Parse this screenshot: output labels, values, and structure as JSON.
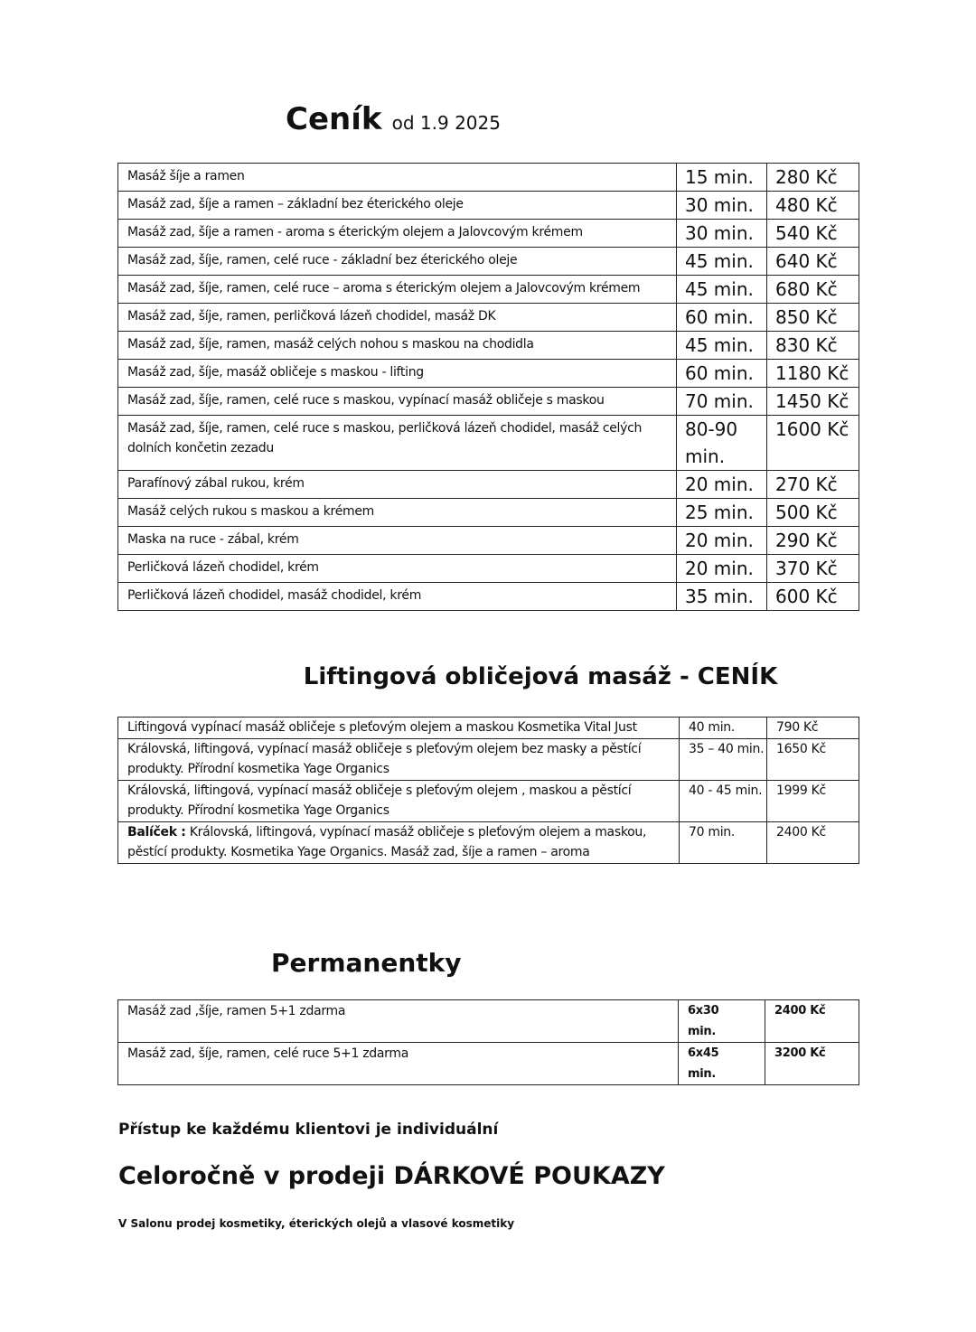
{
  "title": {
    "main": "Ceník",
    "sub": "od 1.9 2025"
  },
  "price_list": [
    {
      "description": "Masáž šíje a ramen",
      "duration": "15 min.",
      "price": "280 Kč"
    },
    {
      "description": "Masáž zad, šíje a ramen – základní bez éterického oleje",
      "duration": "30 min.",
      "price": "480 Kč"
    },
    {
      "description": "Masáž zad, šíje a ramen  - aroma s éterickým olejem a Jalovcovým krémem",
      "duration": "30 min.",
      "price": "540 Kč"
    },
    {
      "description": "Masáž zad, šíje, ramen, celé ruce - základní bez éterického oleje",
      "duration": "45 min.",
      "price": "640 Kč"
    },
    {
      "description": "Masáž zad, šíje, ramen, celé ruce – aroma s éterickým olejem a Jalovcovým krémem",
      "duration": "45 min.",
      "price": "680 Kč"
    },
    {
      "description": "Masáž zad, šíje, ramen, perličková lázeň chodidel, masáž DK",
      "duration": "60 min.",
      "price": "850 Kč"
    },
    {
      "description": "Masáž zad, šíje, ramen, masáž celých nohou s maskou na chodidla",
      "duration": "45 min.",
      "price": "830 Kč"
    },
    {
      "description": "Masáž zad, šíje, masáž obličeje s maskou - lifting",
      "duration": "60 min.",
      "price": "1180 Kč"
    },
    {
      "description": "Masáž zad, šíje, ramen, celé ruce s maskou,  vypínací masáž obličeje s maskou",
      "duration": "70 min.",
      "price": "1450 Kč"
    },
    {
      "description": "Masáž zad, šíje, ramen, celé ruce s maskou, perličková lázeň chodidel, masáž celých dolních končetin zezadu",
      "duration": "80-90 min.",
      "price": "1600 Kč"
    },
    {
      "description": "Parafínový zábal rukou, krém",
      "duration": "20 min.",
      "price": "270 Kč"
    },
    {
      "description": "Masáž celých rukou s maskou a krémem",
      "duration": "25 min.",
      "price": "500 Kč"
    },
    {
      "description": "Maska na ruce - zábal, krém",
      "duration": "20 min.",
      "price": "290 Kč"
    },
    {
      "description": "Perličková lázeň chodidel, krém",
      "duration": "20 min.",
      "price": "370 Kč"
    },
    {
      "description": "Perličková lázeň chodidel, masáž chodidel, krém",
      "duration": "35 min.",
      "price": "600 Kč"
    }
  ],
  "lifting": {
    "title": "Liftingová obličejová masáž - CENÍK",
    "rows": [
      {
        "bold_prefix": "",
        "description": "Liftingová vypínací masáž obličeje s pleťovým olejem a maskou Kosmetika Vital Just",
        "duration": "40 min.",
        "price": "790 Kč"
      },
      {
        "bold_prefix": "",
        "description": "Královská,  liftingová,  vypínací masáž obličeje s pleťovým olejem bez masky a pěstící produkty. Přírodní kosmetika Yage Organics",
        "duration": "35 – 40 min.",
        "price": "1650 Kč"
      },
      {
        "bold_prefix": "",
        "description": "Královská,  liftingová, vypínací masáž obličeje s pleťovým olejem , maskou  a pěstící produkty. Přírodní kosmetika Yage Organics",
        "duration": "40 - 45 min.",
        "price": "1999 Kč"
      },
      {
        "bold_prefix": "Balíček :",
        "description": " Královská, liftingová, vypínací masáž obličeje s pleťovým olejem a maskou, pěstící produkty. Kosmetika Yage Organics.  Masáž zad, šíje a ramen – aroma",
        "duration": "70 min.",
        "price": "2400 Kč"
      }
    ]
  },
  "permanentky": {
    "title": "Permanentky",
    "rows": [
      {
        "description": "Masáž zad ,šíje, ramen 5+1 zdarma",
        "duration": "6x30 min.",
        "price": "2400 Kč"
      },
      {
        "description": "Masáž zad, šíje, ramen, celé ruce 5+1 zdarma",
        "duration": "6x45 min.",
        "price": "3200 Kč"
      }
    ]
  },
  "footer": {
    "individual": "Přístup ke každému klientovi je individuální",
    "vouchers": "Celoročně v prodeji DÁRKOVÉ POUKAZY",
    "salon": "V Salonu prodej kosmetiky, éterických olejů a vlasové kosmetiky"
  }
}
